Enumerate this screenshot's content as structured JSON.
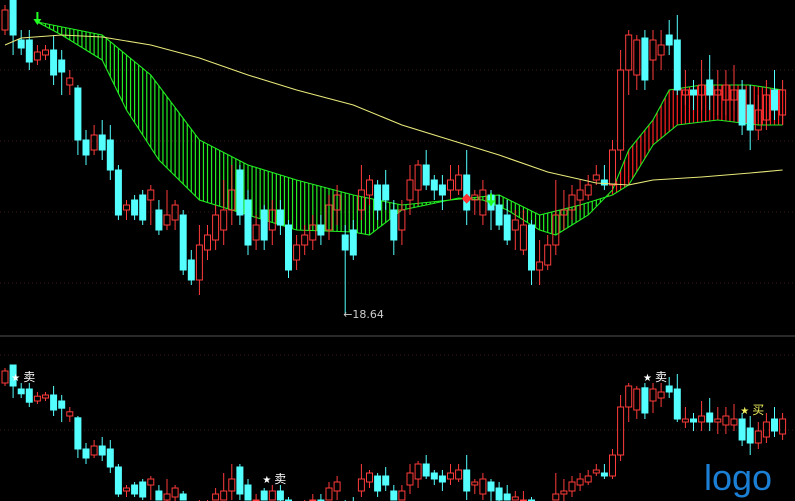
{
  "chart_data": {
    "type": "candlestick",
    "ylim": [
      18.42,
      21.77
    ],
    "colors": {
      "up": "#ff3b3b",
      "down": "#54ffff",
      "ma": "#e8e87a",
      "ribbon_bear": "#22ee22",
      "ribbon_bull": "#ff2020",
      "background": "#000000",
      "buy_label": "#f0f060"
    },
    "candles_ohlc": [
      [
        21.47,
        21.72,
        21.42,
        21.67
      ],
      [
        21.77,
        21.77,
        21.22,
        21.42
      ],
      [
        21.37,
        21.47,
        21.22,
        21.29
      ],
      [
        21.37,
        21.47,
        21.07,
        21.15
      ],
      [
        21.17,
        21.32,
        21.12,
        21.25
      ],
      [
        21.22,
        21.32,
        21.17,
        21.27
      ],
      [
        21.27,
        21.42,
        20.92,
        21.02
      ],
      [
        21.17,
        21.27,
        20.82,
        21.05
      ],
      [
        20.92,
        21.07,
        20.82,
        20.99
      ],
      [
        20.89,
        20.92,
        20.22,
        20.37
      ],
      [
        20.37,
        20.47,
        20.12,
        20.22
      ],
      [
        20.27,
        20.52,
        20.22,
        20.42
      ],
      [
        20.42,
        20.57,
        20.17,
        20.27
      ],
      [
        20.37,
        20.52,
        19.97,
        20.07
      ],
      [
        20.07,
        20.12,
        19.57,
        19.62
      ],
      [
        19.67,
        19.77,
        19.57,
        19.72
      ],
      [
        19.77,
        19.82,
        19.57,
        19.62
      ],
      [
        19.82,
        19.87,
        19.52,
        19.57
      ],
      [
        19.77,
        19.92,
        19.52,
        19.87
      ],
      [
        19.67,
        19.77,
        19.42,
        19.47
      ],
      [
        19.52,
        19.87,
        19.47,
        19.62
      ],
      [
        19.57,
        19.77,
        19.47,
        19.72
      ],
      [
        19.62,
        19.67,
        19.02,
        19.07
      ],
      [
        19.17,
        19.27,
        18.92,
        18.97
      ],
      [
        18.97,
        19.52,
        18.82,
        19.32
      ],
      [
        19.27,
        19.52,
        19.17,
        19.42
      ],
      [
        19.37,
        19.72,
        19.27,
        19.62
      ],
      [
        19.47,
        19.97,
        19.32,
        19.67
      ],
      [
        19.67,
        20.12,
        19.52,
        19.87
      ],
      [
        20.07,
        20.12,
        19.52,
        19.62
      ],
      [
        19.77,
        19.87,
        19.22,
        19.32
      ],
      [
        19.37,
        19.62,
        19.27,
        19.52
      ],
      [
        19.67,
        19.72,
        19.27,
        19.37
      ],
      [
        19.47,
        19.77,
        19.32,
        19.67
      ],
      [
        19.67,
        19.77,
        19.42,
        19.52
      ],
      [
        19.52,
        19.57,
        18.99,
        19.07
      ],
      [
        19.17,
        19.42,
        19.07,
        19.32
      ],
      [
        19.32,
        19.52,
        19.22,
        19.42
      ],
      [
        19.37,
        19.62,
        19.27,
        19.52
      ],
      [
        19.52,
        19.62,
        19.32,
        19.42
      ],
      [
        19.47,
        19.82,
        19.37,
        19.72
      ],
      [
        19.67,
        19.92,
        19.52,
        19.82
      ],
      [
        19.42,
        19.52,
        18.64,
        19.27
      ],
      [
        19.47,
        19.57,
        19.17,
        19.22
      ],
      [
        19.67,
        20.12,
        19.57,
        19.87
      ],
      [
        19.82,
        20.02,
        19.72,
        19.97
      ],
      [
        19.92,
        19.97,
        19.57,
        19.67
      ],
      [
        19.92,
        20.07,
        19.67,
        19.77
      ],
      [
        19.67,
        19.77,
        19.22,
        19.37
      ],
      [
        19.47,
        19.77,
        19.32,
        19.67
      ],
      [
        19.77,
        20.12,
        19.62,
        19.97
      ],
      [
        19.87,
        20.17,
        19.72,
        20.12
      ],
      [
        20.12,
        20.27,
        19.87,
        19.92
      ],
      [
        19.97,
        20.02,
        19.77,
        19.87
      ],
      [
        19.92,
        20.02,
        19.67,
        19.82
      ],
      [
        19.87,
        20.12,
        19.77,
        19.97
      ],
      [
        19.87,
        20.12,
        19.82,
        20.02
      ],
      [
        20.02,
        20.27,
        19.52,
        19.67
      ],
      [
        19.77,
        19.87,
        19.62,
        19.82
      ],
      [
        19.62,
        19.97,
        19.52,
        19.87
      ],
      [
        19.82,
        19.87,
        19.47,
        19.67
      ],
      [
        19.72,
        19.82,
        19.47,
        19.52
      ],
      [
        19.62,
        19.77,
        19.32,
        19.37
      ],
      [
        19.47,
        19.67,
        19.27,
        19.57
      ],
      [
        19.27,
        19.67,
        19.22,
        19.52
      ],
      [
        19.52,
        19.57,
        18.92,
        19.07
      ],
      [
        19.07,
        19.37,
        18.92,
        19.15
      ],
      [
        19.12,
        19.42,
        19.07,
        19.32
      ],
      [
        19.32,
        19.97,
        19.22,
        19.62
      ],
      [
        19.62,
        19.87,
        19.47,
        19.67
      ],
      [
        19.67,
        19.92,
        19.57,
        19.82
      ],
      [
        19.77,
        19.97,
        19.67,
        19.87
      ],
      [
        19.82,
        20.02,
        19.77,
        19.92
      ],
      [
        19.97,
        20.12,
        19.92,
        20.02
      ],
      [
        19.97,
        20.12,
        19.87,
        19.92
      ],
      [
        19.92,
        20.37,
        19.87,
        20.27
      ],
      [
        20.27,
        21.27,
        20.17,
        21.07
      ],
      [
        21.07,
        21.47,
        20.82,
        21.42
      ],
      [
        21.02,
        21.42,
        20.87,
        21.37
      ],
      [
        21.39,
        21.47,
        20.87,
        20.97
      ],
      [
        21.17,
        21.47,
        20.97,
        21.37
      ],
      [
        21.22,
        21.47,
        21.07,
        21.32
      ],
      [
        21.42,
        21.57,
        21.22,
        21.32
      ],
      [
        21.37,
        21.62,
        20.82,
        20.87
      ],
      [
        20.82,
        21.07,
        20.72,
        20.87
      ],
      [
        20.87,
        20.97,
        20.67,
        20.82
      ],
      [
        20.82,
        21.17,
        20.67,
        20.92
      ],
      [
        20.97,
        21.22,
        20.67,
        20.82
      ],
      [
        20.82,
        21.07,
        20.62,
        20.87
      ],
      [
        20.77,
        21.07,
        20.62,
        20.92
      ],
      [
        20.77,
        21.12,
        20.67,
        20.87
      ],
      [
        20.87,
        20.97,
        20.42,
        20.52
      ],
      [
        20.72,
        20.92,
        20.27,
        20.47
      ],
      [
        20.47,
        20.82,
        20.37,
        20.67
      ],
      [
        20.57,
        20.97,
        20.47,
        20.82
      ],
      [
        20.87,
        21.07,
        20.57,
        20.67
      ],
      [
        20.62,
        20.97,
        20.52,
        20.87
      ]
    ],
    "ma_line": [
      [
        0,
        21.32
      ],
      [
        2,
        21.39
      ],
      [
        7,
        21.42
      ],
      [
        12,
        21.4
      ],
      [
        18,
        21.32
      ],
      [
        24,
        21.19
      ],
      [
        30,
        21.02
      ],
      [
        36,
        20.87
      ],
      [
        43,
        20.72
      ],
      [
        49,
        20.52
      ],
      [
        55,
        20.37
      ],
      [
        61,
        20.22
      ],
      [
        67,
        20.05
      ],
      [
        73,
        19.94
      ],
      [
        77,
        19.92
      ],
      [
        80,
        19.97
      ],
      [
        86,
        20.0
      ],
      [
        92,
        20.04
      ],
      [
        96,
        20.07
      ]
    ],
    "ribbon_slow": [
      [
        4,
        21.55
      ],
      [
        12,
        21.42
      ],
      [
        18,
        21.02
      ],
      [
        24,
        20.37
      ],
      [
        30,
        20.12
      ],
      [
        36,
        19.97
      ],
      [
        43,
        19.82
      ],
      [
        49,
        19.72
      ],
      [
        55,
        19.77
      ],
      [
        61,
        19.82
      ],
      [
        66,
        19.62
      ],
      [
        71,
        19.72
      ],
      [
        75,
        19.82
      ],
      [
        77,
        19.92
      ],
      [
        80,
        20.32
      ],
      [
        83,
        20.52
      ],
      [
        88,
        20.57
      ],
      [
        93,
        20.52
      ],
      [
        96,
        20.52
      ]
    ],
    "ribbon_fast": [
      [
        4,
        21.55
      ],
      [
        7,
        21.42
      ],
      [
        12,
        21.17
      ],
      [
        15,
        20.67
      ],
      [
        19,
        20.17
      ],
      [
        24,
        19.77
      ],
      [
        30,
        19.62
      ],
      [
        36,
        19.47
      ],
      [
        43,
        19.45
      ],
      [
        45,
        19.42
      ],
      [
        49,
        19.67
      ],
      [
        52,
        19.72
      ],
      [
        56,
        19.79
      ],
      [
        59,
        19.77
      ],
      [
        62,
        19.67
      ],
      [
        66,
        19.47
      ],
      [
        68,
        19.42
      ],
      [
        72,
        19.62
      ],
      [
        75,
        19.87
      ],
      [
        77,
        20.27
      ],
      [
        80,
        20.57
      ],
      [
        82,
        20.87
      ],
      [
        86,
        20.92
      ],
      [
        92,
        20.92
      ],
      [
        96,
        20.87
      ]
    ],
    "low_annotation": {
      "index": 42,
      "text": "←18.64"
    },
    "signals_lower": [
      {
        "index": 2,
        "text": "卖",
        "kind": "sell"
      },
      {
        "index": 33,
        "text": "卖",
        "kind": "sell"
      },
      {
        "index": 80,
        "text": "卖",
        "kind": "sell"
      },
      {
        "index": 92,
        "text": "买",
        "kind": "buy"
      }
    ],
    "markers": [
      {
        "index": 4,
        "kind": "green-arrow"
      },
      {
        "index": 60,
        "kind": "green-arrow"
      },
      {
        "index": 57,
        "kind": "red-diamond"
      }
    ]
  },
  "logo_text": "logo"
}
